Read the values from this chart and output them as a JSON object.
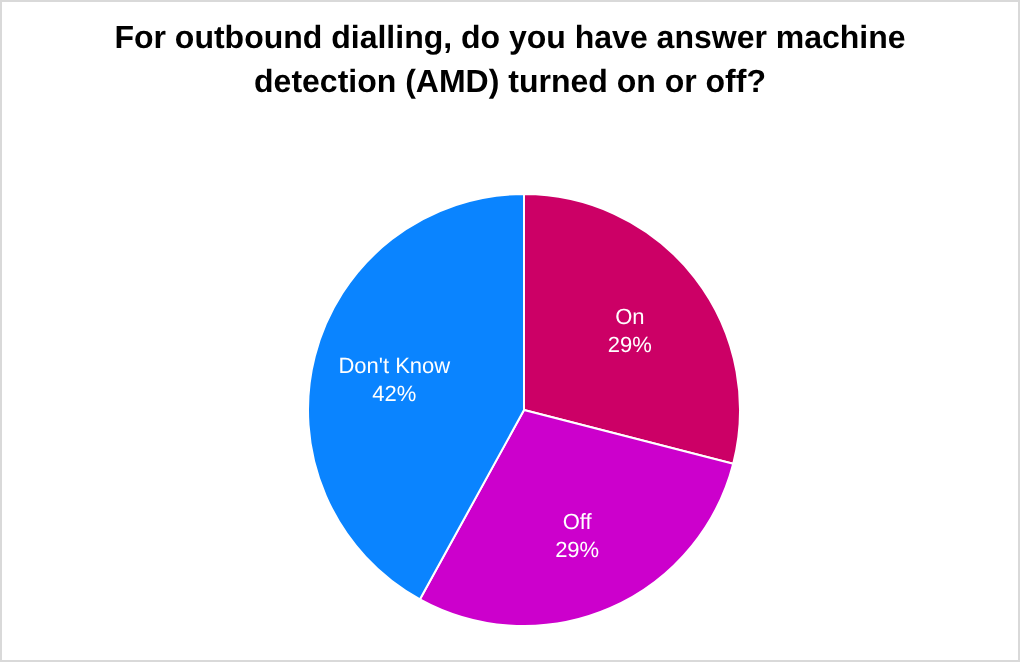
{
  "chart_data": {
    "type": "pie",
    "title": "For outbound dialling, do you have answer machine detection (AMD) turned on or off?",
    "categories": [
      "On",
      "Off",
      "Don't Know"
    ],
    "values": [
      29,
      29,
      42
    ],
    "colors": [
      "#cc0066",
      "#cc00cc",
      "#0a84ff"
    ],
    "value_labels": [
      "29%",
      "29%",
      "42%"
    ]
  }
}
